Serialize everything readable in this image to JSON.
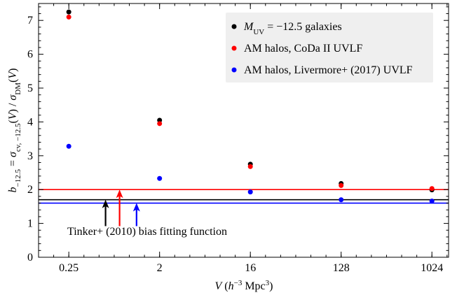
{
  "chart_data": {
    "type": "scatter",
    "x_scale": "log2",
    "x_ticks": [
      0.25,
      2,
      16,
      128,
      1024
    ],
    "x_tick_labels": [
      "0.25",
      "2",
      "16",
      "128",
      "1024"
    ],
    "xlim": [
      0.125,
      1500
    ],
    "ylim": [
      0,
      7.5
    ],
    "y_ticks": [
      0,
      1,
      2,
      3,
      4,
      5,
      6,
      7
    ],
    "y_tick_labels": [
      "0",
      "1",
      "2",
      "3",
      "4",
      "5",
      "6",
      "7"
    ],
    "xlabel_parts": [
      "V",
      "(h",
      "−3",
      " Mpc",
      "3",
      ")"
    ],
    "ylabel_parts": [
      "b",
      "−12.5",
      " = σ",
      "cv, −12.5",
      "(V) / σ",
      "DM",
      "(V)"
    ],
    "grid": false,
    "legend_position": "top-right",
    "series": [
      {
        "name_parts": [
          "M",
          "UV",
          " = −12.5 galaxies"
        ],
        "color": "#000000",
        "x": [
          0.25,
          2,
          16,
          128,
          1024
        ],
        "y": [
          7.25,
          4.05,
          2.75,
          2.18,
          1.99
        ]
      },
      {
        "name": "AM halos, CoDa II UVLF",
        "color": "#ff0000",
        "x": [
          0.25,
          2,
          16,
          128,
          1024
        ],
        "y": [
          7.1,
          3.95,
          2.68,
          2.12,
          2.03
        ]
      },
      {
        "name": "AM halos, Livermore+ (2017) UVLF",
        "color": "#0000ff",
        "x": [
          0.25,
          2,
          16,
          128,
          1024
        ],
        "y": [
          3.28,
          2.33,
          1.93,
          1.7,
          1.66
        ]
      }
    ],
    "reference_lines": [
      {
        "color": "#ff0000",
        "y": 2.0
      },
      {
        "color": "#000000",
        "y": 1.7
      },
      {
        "color": "#0000ff",
        "y": 1.6
      }
    ],
    "arrows": [
      {
        "color": "#000000",
        "x": 0.58,
        "y_from": 0.92,
        "y_to": 1.7
      },
      {
        "color": "#ff0000",
        "x": 0.8,
        "y_from": 0.92,
        "y_to": 2.0
      },
      {
        "color": "#0000ff",
        "x": 1.18,
        "y_from": 0.92,
        "y_to": 1.6
      }
    ],
    "annotation": "Tinker+ (2010) bias fitting function"
  }
}
